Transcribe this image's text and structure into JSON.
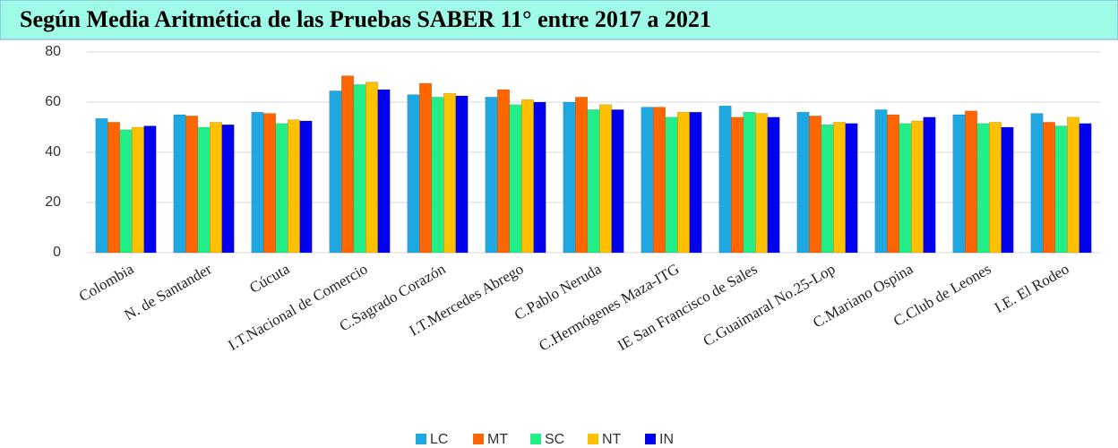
{
  "chart_data": {
    "type": "bar",
    "title": "Según Media Aritmética de las Pruebas SABER 11° entre 2017 a 2021",
    "categories": [
      "Colombia",
      "N. de Santander",
      "Cúcuta",
      "I.T.Nacional de Comercio",
      "C.Sagrado Corazón",
      "I.T.Mercedes Abrego",
      "C.Pablo Neruda",
      "C.Hermógenes Maza-ITG",
      "IE San Francisco de Sales",
      "C.Guaimaral No.25-Lop",
      "C.Mariano Ospina",
      "C.Club de Leones",
      "I.E. El Rodeo"
    ],
    "series": [
      {
        "name": "LC",
        "color": "#1ea7e1",
        "values": [
          53.5,
          55,
          56,
          64.5,
          63,
          62,
          60,
          58,
          58.5,
          56,
          57,
          55,
          55.5
        ]
      },
      {
        "name": "MT",
        "color": "#ff6600",
        "values": [
          52,
          54.5,
          55.5,
          70.5,
          67.5,
          65,
          62,
          58,
          54,
          54.5,
          55,
          56.5,
          52
        ]
      },
      {
        "name": "SC",
        "color": "#22ee88",
        "values": [
          49,
          50,
          51.5,
          67,
          62,
          59,
          57,
          54,
          56,
          51,
          51.5,
          51.5,
          50.5
        ]
      },
      {
        "name": "NT",
        "color": "#ffc000",
        "values": [
          50,
          52,
          53,
          68,
          63.5,
          61,
          59,
          56,
          55.5,
          52,
          52.5,
          52,
          54
        ]
      },
      {
        "name": "IN",
        "color": "#0000ee",
        "values": [
          50.5,
          51,
          52.5,
          65,
          62.5,
          60,
          57,
          56,
          54,
          51.5,
          54,
          50,
          51.5
        ]
      }
    ],
    "ylim": [
      0,
      80
    ],
    "yticks": [
      0,
      20,
      40,
      60,
      80
    ],
    "grid": true,
    "legend": "bottom"
  }
}
